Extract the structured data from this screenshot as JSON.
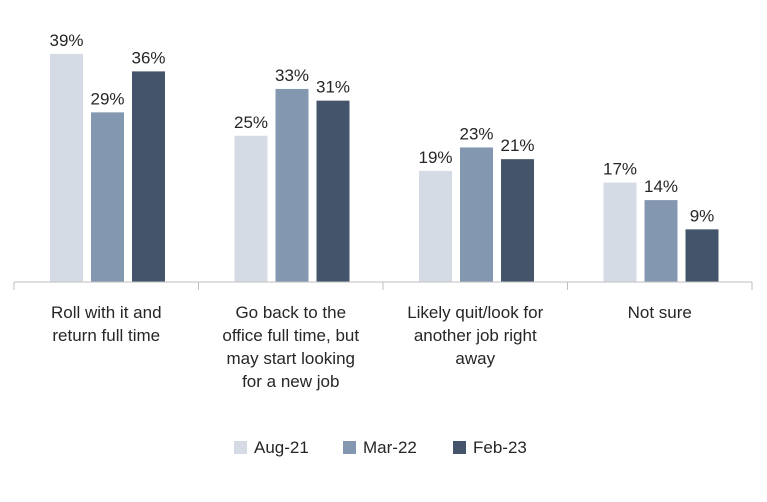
{
  "chart_data": {
    "type": "bar",
    "title": "",
    "xlabel": "",
    "ylabel": "",
    "ylim": [
      0,
      40
    ],
    "grid": false,
    "legend_position": "bottom",
    "categories": [
      [
        "Roll with it and",
        "return full time"
      ],
      [
        "Go back to the",
        "office full time, but",
        "may start looking",
        "for a new job"
      ],
      [
        "Likely quit/look for",
        "another job right",
        "away"
      ],
      [
        "Not sure"
      ]
    ],
    "series": [
      {
        "name": "Aug-21",
        "color": "#d5dbe5",
        "values": [
          39,
          25,
          19,
          17
        ],
        "labels": [
          "39%",
          "25%",
          "19%",
          "17%"
        ]
      },
      {
        "name": "Mar-22",
        "color": "#8497b0",
        "values": [
          29,
          33,
          23,
          14
        ],
        "labels": [
          "29%",
          "33%",
          "23%",
          "14%"
        ]
      },
      {
        "name": "Feb-23",
        "color": "#44546a",
        "values": [
          36,
          31,
          21,
          9
        ],
        "labels": [
          "36%",
          "31%",
          "21%",
          "9%"
        ]
      }
    ],
    "axis_color": "#bfbfbf"
  }
}
